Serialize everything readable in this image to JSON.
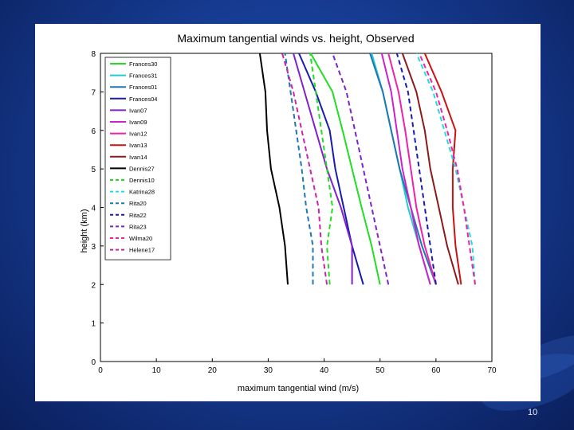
{
  "slide": {
    "number": "10"
  },
  "chart_data": {
    "type": "line",
    "title": "Maximum tangential winds vs. height, Observed",
    "xlabel": "maximum tangential wind (m/s)",
    "ylabel": "height (km)",
    "xlim": [
      0,
      70
    ],
    "ylim": [
      0,
      8
    ],
    "xticks": [
      0,
      10,
      20,
      30,
      40,
      50,
      60,
      70
    ],
    "yticks": [
      0,
      1,
      2,
      3,
      4,
      5,
      6,
      7,
      8
    ],
    "grid": false,
    "legend_position": "top-left",
    "series": [
      {
        "name": "Frances30",
        "color": "#22dd22",
        "dash": "solid",
        "points": [
          [
            50.0,
            2
          ],
          [
            48.5,
            3
          ],
          [
            46.7,
            4
          ],
          [
            45.0,
            5
          ],
          [
            43.3,
            6
          ],
          [
            41.5,
            7
          ],
          [
            37.6,
            8
          ]
        ]
      },
      {
        "name": "Frances31",
        "color": "#22cccc",
        "dash": "solid",
        "points": [
          [
            59.0,
            2
          ],
          [
            57.0,
            3
          ],
          [
            55.0,
            4
          ],
          [
            53.5,
            5
          ],
          [
            52.0,
            6
          ],
          [
            50.5,
            7
          ],
          [
            48.5,
            8
          ]
        ]
      },
      {
        "name": "Frances01",
        "color": "#1f77b4",
        "dash": "solid",
        "points": [
          [
            60.0,
            2
          ],
          [
            57.5,
            3
          ],
          [
            55.5,
            4
          ],
          [
            53.5,
            5
          ],
          [
            52.0,
            6
          ],
          [
            50.5,
            7
          ],
          [
            48.2,
            8
          ]
        ]
      },
      {
        "name": "Frances04",
        "color": "#1a1ab0",
        "dash": "solid",
        "points": [
          [
            47.0,
            2
          ],
          [
            45.0,
            3
          ],
          [
            43.5,
            4
          ],
          [
            42.0,
            5
          ],
          [
            41.0,
            6
          ],
          [
            38.5,
            7
          ],
          [
            35.5,
            8
          ]
        ]
      },
      {
        "name": "Ivan07",
        "color": "#7f22cc",
        "dash": "solid",
        "points": [
          [
            45.0,
            2
          ],
          [
            45.0,
            3
          ],
          [
            43.0,
            4
          ],
          [
            40.5,
            5
          ],
          [
            38.5,
            6
          ],
          [
            36.5,
            7
          ],
          [
            34.5,
            8
          ]
        ]
      },
      {
        "name": "Ivan09",
        "color": "#cc22cc",
        "dash": "solid",
        "points": [
          [
            59.0,
            2
          ],
          [
            57.0,
            3
          ],
          [
            55.5,
            4
          ],
          [
            54.0,
            5
          ],
          [
            53.0,
            6
          ],
          [
            52.0,
            7
          ],
          [
            50.3,
            8
          ]
        ]
      },
      {
        "name": "Ivan12",
        "color": "#ee22aa",
        "dash": "solid",
        "points": [
          [
            60.0,
            2
          ],
          [
            58.0,
            3
          ],
          [
            56.5,
            4
          ],
          [
            55.5,
            5
          ],
          [
            54.5,
            6
          ],
          [
            53.3,
            7
          ],
          [
            51.5,
            8
          ]
        ]
      },
      {
        "name": "Ivan13",
        "color": "#cc1111",
        "dash": "solid",
        "points": [
          [
            64.5,
            2
          ],
          [
            63.5,
            3
          ],
          [
            63.0,
            4
          ],
          [
            63.0,
            5
          ],
          [
            63.5,
            6
          ],
          [
            61.0,
            7
          ],
          [
            58.0,
            8
          ]
        ]
      },
      {
        "name": "Ivan14",
        "color": "#8b1a1a",
        "dash": "solid",
        "points": [
          [
            64.0,
            2
          ],
          [
            62.0,
            3
          ],
          [
            60.5,
            4
          ],
          [
            59.0,
            5
          ],
          [
            58.0,
            6
          ],
          [
            56.5,
            7
          ],
          [
            54.0,
            8
          ]
        ]
      },
      {
        "name": "Dennis27",
        "color": "#000000",
        "dash": "solid",
        "points": [
          [
            33.5,
            2
          ],
          [
            33.0,
            3
          ],
          [
            32.0,
            4
          ],
          [
            30.5,
            5
          ],
          [
            29.8,
            6
          ],
          [
            29.5,
            7
          ],
          [
            28.5,
            8
          ]
        ]
      },
      {
        "name": "Dennis10",
        "color": "#22dd22",
        "dash": "dashed",
        "points": [
          [
            41.0,
            2
          ],
          [
            40.5,
            3
          ],
          [
            41.5,
            4
          ],
          [
            40.5,
            5
          ],
          [
            39.5,
            6
          ],
          [
            38.5,
            7
          ],
          [
            37.5,
            8
          ]
        ]
      },
      {
        "name": "Katrina28",
        "color": "#22dddd",
        "dash": "dashed",
        "points": [
          [
            67.0,
            2
          ],
          [
            66.5,
            3
          ],
          [
            65.0,
            4
          ],
          [
            63.5,
            5
          ],
          [
            61.5,
            6
          ],
          [
            59.5,
            7
          ],
          [
            56.5,
            8
          ]
        ]
      },
      {
        "name": "Rita20",
        "color": "#1f77b4",
        "dash": "dashed",
        "points": [
          [
            38.0,
            2
          ],
          [
            38.0,
            3
          ],
          [
            36.8,
            4
          ],
          [
            36.0,
            5
          ],
          [
            35.0,
            6
          ],
          [
            34.0,
            7
          ],
          [
            33.0,
            8
          ]
        ]
      },
      {
        "name": "Rita22",
        "color": "#1a1ab0",
        "dash": "dashed",
        "points": [
          [
            60.0,
            2
          ],
          [
            59.0,
            3
          ],
          [
            58.0,
            4
          ],
          [
            57.0,
            5
          ],
          [
            56.0,
            6
          ],
          [
            55.0,
            7
          ],
          [
            53.0,
            8
          ]
        ]
      },
      {
        "name": "Rita23",
        "color": "#7f22cc",
        "dash": "dashed",
        "points": [
          [
            51.5,
            2
          ],
          [
            50.0,
            3
          ],
          [
            48.5,
            4
          ],
          [
            47.0,
            5
          ],
          [
            45.5,
            6
          ],
          [
            44.0,
            7
          ],
          [
            41.5,
            8
          ]
        ]
      },
      {
        "name": "Wilma20",
        "color": "#ee22aa",
        "dash": "dashed",
        "points": [
          [
            67.0,
            2
          ],
          [
            66.0,
            3
          ],
          [
            65.0,
            4
          ],
          [
            63.8,
            5
          ],
          [
            62.0,
            6
          ],
          [
            60.0,
            7
          ],
          [
            57.0,
            8
          ]
        ]
      },
      {
        "name": "Helene17",
        "color": "#cc22aa",
        "dash": "dashed",
        "points": [
          [
            40.5,
            2
          ],
          [
            39.5,
            3
          ],
          [
            39.0,
            4
          ],
          [
            37.5,
            5
          ],
          [
            36.0,
            6
          ],
          [
            34.5,
            7
          ],
          [
            32.5,
            8
          ]
        ]
      }
    ]
  }
}
